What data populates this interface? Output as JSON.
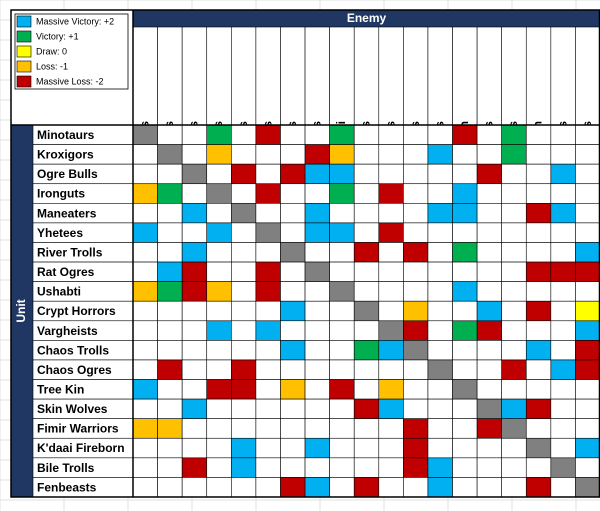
{
  "legend": [
    {
      "label": "Massive Victory: +2",
      "color": "#00b0f0"
    },
    {
      "label": "Victory: +1",
      "color": "#00b050"
    },
    {
      "label": "Draw: 0",
      "color": "#ffff00"
    },
    {
      "label": "Loss: -1",
      "color": "#ffc000"
    },
    {
      "label": "Massive Loss: -2",
      "color": "#c00000"
    }
  ],
  "column_header": "Enemy",
  "row_header": "Unit",
  "header_color": "#203764",
  "columns": [
    "Minotaurs",
    "Kroxigors",
    "Ogre Bulls",
    "Ironguts",
    "Maneaters",
    "Yhetees",
    "River Trolls",
    "Rat Ogres",
    "Ushabti",
    "Crypt Horrors",
    "Vargheists",
    "Chaos Trolls",
    "Chaos Ogres",
    "Tree Kin",
    "Skin Wolves",
    "Fimir Warriors",
    "K'daai Fireborn",
    "Bile Trolls",
    "Fenbeasts"
  ],
  "rows": [
    "Minotaurs",
    "Kroxigors",
    "Ogre Bulls",
    "Ironguts",
    "Maneaters",
    "Yhetees",
    "River Trolls",
    "Rat Ogres",
    "Ushabti",
    "Crypt Horrors",
    "Vargheists",
    "Chaos Trolls",
    "Chaos Ogres",
    "Tree Kin",
    "Skin Wolves",
    "Fimir Warriors",
    "K'daai Fireborn",
    "Bile Trolls",
    "Fenbeasts"
  ],
  "cells": [
    [
      "#808080",
      null,
      null,
      "#00b050",
      null,
      "#c00000",
      null,
      null,
      "#00b050",
      null,
      null,
      null,
      null,
      "#c00000",
      null,
      "#00b050",
      null,
      null,
      null
    ],
    [
      null,
      "#808080",
      null,
      "#ffc000",
      null,
      null,
      null,
      "#c00000",
      "#ffc000",
      null,
      null,
      null,
      "#00b0f0",
      null,
      null,
      "#00b050",
      null,
      null,
      null
    ],
    [
      null,
      null,
      "#808080",
      null,
      "#c00000",
      null,
      "#c00000",
      "#00b0f0",
      "#00b0f0",
      null,
      null,
      null,
      null,
      null,
      "#c00000",
      null,
      null,
      "#00b0f0",
      null
    ],
    [
      "#ffc000",
      "#00b050",
      null,
      "#808080",
      null,
      "#c00000",
      null,
      null,
      "#00b050",
      null,
      "#c00000",
      null,
      null,
      "#00b0f0",
      null,
      null,
      null,
      null,
      null
    ],
    [
      null,
      null,
      "#00b0f0",
      null,
      "#808080",
      null,
      null,
      "#00b0f0",
      null,
      null,
      null,
      null,
      "#00b0f0",
      "#00b0f0",
      null,
      null,
      "#c00000",
      "#00b0f0",
      null
    ],
    [
      "#00b0f0",
      null,
      null,
      "#00b0f0",
      null,
      "#808080",
      null,
      "#00b0f0",
      "#00b0f0",
      null,
      "#c00000",
      null,
      null,
      null,
      null,
      null,
      null,
      null,
      null
    ],
    [
      null,
      null,
      "#00b0f0",
      null,
      null,
      null,
      "#808080",
      null,
      null,
      "#c00000",
      null,
      "#c00000",
      null,
      "#00b050",
      null,
      null,
      null,
      null,
      "#00b0f0"
    ],
    [
      null,
      "#00b0f0",
      "#c00000",
      null,
      null,
      "#c00000",
      null,
      "#808080",
      null,
      null,
      null,
      null,
      null,
      null,
      null,
      null,
      "#c00000",
      "#c00000",
      "#c00000"
    ],
    [
      "#ffc000",
      "#00b050",
      "#c00000",
      "#ffc000",
      null,
      "#c00000",
      null,
      null,
      "#808080",
      null,
      null,
      null,
      null,
      "#00b0f0",
      null,
      null,
      null,
      null,
      null
    ],
    [
      null,
      null,
      null,
      null,
      null,
      null,
      "#00b0f0",
      null,
      null,
      "#808080",
      null,
      "#ffc000",
      null,
      null,
      "#00b0f0",
      null,
      "#c00000",
      null,
      "#ffff00"
    ],
    [
      null,
      null,
      null,
      "#00b0f0",
      null,
      "#00b0f0",
      null,
      null,
      null,
      null,
      "#808080",
      "#c00000",
      null,
      "#00b050",
      "#c00000",
      null,
      null,
      null,
      "#00b0f0"
    ],
    [
      null,
      null,
      null,
      null,
      null,
      null,
      "#00b0f0",
      null,
      null,
      "#00b050",
      "#00b0f0",
      "#808080",
      null,
      null,
      null,
      null,
      "#00b0f0",
      null,
      "#c00000"
    ],
    [
      null,
      "#c00000",
      null,
      null,
      "#c00000",
      null,
      null,
      null,
      null,
      null,
      null,
      null,
      "#808080",
      null,
      null,
      "#c00000",
      null,
      "#00b0f0",
      "#c00000"
    ],
    [
      "#00b0f0",
      null,
      null,
      "#c00000",
      "#c00000",
      null,
      "#ffc000",
      null,
      "#c00000",
      null,
      "#ffc000",
      null,
      null,
      "#808080",
      null,
      null,
      null,
      null,
      null
    ],
    [
      null,
      null,
      "#00b0f0",
      null,
      null,
      null,
      null,
      null,
      null,
      "#c00000",
      "#00b0f0",
      null,
      null,
      null,
      "#808080",
      "#00b0f0",
      "#c00000",
      null,
      null
    ],
    [
      "#ffc000",
      "#ffc000",
      null,
      null,
      null,
      null,
      null,
      null,
      null,
      null,
      null,
      "#c00000",
      null,
      null,
      "#c00000",
      "#808080",
      null,
      null,
      null
    ],
    [
      null,
      null,
      null,
      null,
      "#00b0f0",
      null,
      null,
      "#00b0f0",
      null,
      null,
      null,
      "#c00000",
      null,
      null,
      null,
      null,
      "#808080",
      null,
      "#00b0f0"
    ],
    [
      null,
      null,
      "#c00000",
      null,
      "#00b0f0",
      null,
      null,
      null,
      null,
      null,
      null,
      "#c00000",
      "#00b0f0",
      null,
      null,
      null,
      null,
      "#808080",
      null
    ],
    [
      null,
      null,
      null,
      null,
      null,
      null,
      "#c00000",
      "#00b0f0",
      null,
      "#c00000",
      null,
      null,
      "#00b0f0",
      null,
      null,
      null,
      "#c00000",
      null,
      "#808080"
    ]
  ]
}
